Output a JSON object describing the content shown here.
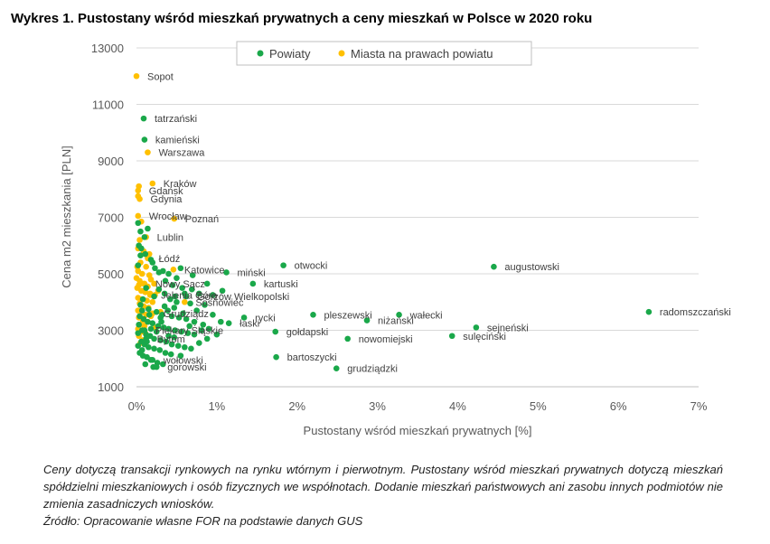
{
  "title": "Wykres 1. Pustostany wśród mieszkań prywatnych a ceny mieszkań w Polsce w 2020 roku",
  "caption": {
    "line1": "Ceny dotyczą transakcji rynkowych na rynku wtórnym i pierwotnym. Pustostany wśród mieszkań prywatnych dotyczą mieszkań spółdzielni mieszkaniowych i osób fizycznych we współnotach. Dodanie mieszkań państwowych ani zasobu innych podmiotów nie zmienia zasadniczych wniosków.",
    "line2": "Źródło: Opracowanie własne FOR na podstawie danych GUS"
  },
  "chart_data": {
    "type": "scatter",
    "xlabel": "Pustostany wśród mieszkań prywatnych [%]",
    "ylabel": "Cena m2 mieszkania [PLN]",
    "xlim": [
      0,
      7
    ],
    "ylim": [
      1000,
      13000
    ],
    "x_ticks": [
      0,
      1,
      2,
      3,
      4,
      5,
      6,
      7
    ],
    "x_tick_labels": [
      "0%",
      "1%",
      "2%",
      "3%",
      "4%",
      "5%",
      "6%",
      "7%"
    ],
    "y_ticks": [
      1000,
      3000,
      5000,
      7000,
      9000,
      11000,
      13000
    ],
    "y_tick_labels": [
      "1000",
      "3000",
      "5000",
      "7000",
      "9000",
      "11000",
      "13000"
    ],
    "grid": "horizontal",
    "legend_position": "top-center",
    "colors": {
      "powiaty": "#1aa84a",
      "miasta": "#ffc000"
    },
    "series": [
      {
        "name": "Powiaty",
        "color": "#1aa84a",
        "labeled_points": [
          {
            "label": "tatrzański",
            "x": 0.09,
            "y": 10500
          },
          {
            "label": "kamieński",
            "x": 0.1,
            "y": 9750
          },
          {
            "label": "augustowski",
            "x": 4.45,
            "y": 5250
          },
          {
            "label": "radomszczański",
            "x": 6.38,
            "y": 3650
          },
          {
            "label": "otwocki",
            "x": 1.83,
            "y": 5300
          },
          {
            "label": "miński",
            "x": 1.12,
            "y": 5050
          },
          {
            "label": "kartuski",
            "x": 1.45,
            "y": 4650
          },
          {
            "label": "Gorzów Wielkopolski",
            "x": 0.62,
            "y": 4200
          },
          {
            "label": "łaski",
            "x": 1.15,
            "y": 3250
          },
          {
            "label": "rycki",
            "x": 1.34,
            "y": 3450
          },
          {
            "label": "pleszewski",
            "x": 2.2,
            "y": 3550
          },
          {
            "label": "niżański",
            "x": 2.87,
            "y": 3350
          },
          {
            "label": "wałecki",
            "x": 3.27,
            "y": 3550
          },
          {
            "label": "sejneński",
            "x": 4.23,
            "y": 3100
          },
          {
            "label": "sulęciński",
            "x": 3.93,
            "y": 2800
          },
          {
            "label": "nowomiejski",
            "x": 2.63,
            "y": 2700
          },
          {
            "label": "gołdapski",
            "x": 1.73,
            "y": 2950
          },
          {
            "label": "bartoszycki",
            "x": 1.74,
            "y": 2050
          },
          {
            "label": "grudziądzki",
            "x": 2.49,
            "y": 1650
          },
          {
            "label": "Piekary Śląskie",
            "x": 0.1,
            "y": 3000
          },
          {
            "label": "Bytom",
            "x": 0.12,
            "y": 2700
          },
          {
            "label": "wołowski",
            "x": 0.2,
            "y": 1950
          },
          {
            "label": "gorowski",
            "x": 0.25,
            "y": 1700
          }
        ],
        "points": [
          [
            0.02,
            6800
          ],
          [
            0.05,
            6500
          ],
          [
            0.1,
            6300
          ],
          [
            0.14,
            6600
          ],
          [
            0.03,
            6000
          ],
          [
            0.06,
            5900
          ],
          [
            0.05,
            5650
          ],
          [
            0.11,
            5700
          ],
          [
            0.18,
            5500
          ],
          [
            0.2,
            5400
          ],
          [
            0.23,
            5200
          ],
          [
            0.02,
            5300
          ],
          [
            0.28,
            5050
          ],
          [
            0.33,
            5100
          ],
          [
            0.4,
            5000
          ],
          [
            0.5,
            4850
          ],
          [
            0.36,
            4750
          ],
          [
            0.45,
            4600
          ],
          [
            0.57,
            4500
          ],
          [
            0.69,
            4450
          ],
          [
            0.6,
            4300
          ],
          [
            0.78,
            4300
          ],
          [
            0.95,
            4250
          ],
          [
            0.42,
            4100
          ],
          [
            0.5,
            4000
          ],
          [
            0.67,
            3950
          ],
          [
            0.35,
            3850
          ],
          [
            0.47,
            3800
          ],
          [
            0.85,
            3900
          ],
          [
            0.05,
            3900
          ],
          [
            0.15,
            3750
          ],
          [
            0.25,
            3650
          ],
          [
            0.32,
            3550
          ],
          [
            0.44,
            3500
          ],
          [
            0.53,
            3450
          ],
          [
            0.62,
            3400
          ],
          [
            0.72,
            3300
          ],
          [
            0.83,
            3200
          ],
          [
            0.04,
            3500
          ],
          [
            0.09,
            3400
          ],
          [
            0.14,
            3300
          ],
          [
            0.2,
            3250
          ],
          [
            0.27,
            3150
          ],
          [
            0.34,
            3100
          ],
          [
            0.4,
            3050
          ],
          [
            0.48,
            3000
          ],
          [
            0.56,
            2950
          ],
          [
            0.64,
            2900
          ],
          [
            0.72,
            2850
          ],
          [
            0.81,
            3000
          ],
          [
            0.88,
            2700
          ],
          [
            0.03,
            3200
          ],
          [
            0.07,
            3000
          ],
          [
            0.12,
            2850
          ],
          [
            0.17,
            2800
          ],
          [
            0.22,
            2700
          ],
          [
            0.3,
            2650
          ],
          [
            0.37,
            2600
          ],
          [
            0.44,
            2500
          ],
          [
            0.52,
            2450
          ],
          [
            0.6,
            2400
          ],
          [
            0.68,
            2350
          ],
          [
            0.02,
            2900
          ],
          [
            0.06,
            2600
          ],
          [
            0.1,
            2500
          ],
          [
            0.15,
            2400
          ],
          [
            0.22,
            2350
          ],
          [
            0.29,
            2300
          ],
          [
            0.36,
            2200
          ],
          [
            0.43,
            2150
          ],
          [
            0.02,
            2450
          ],
          [
            0.04,
            2200
          ],
          [
            0.08,
            2100
          ],
          [
            0.13,
            2050
          ],
          [
            0.18,
            1950
          ],
          [
            0.26,
            1850
          ],
          [
            0.33,
            1800
          ],
          [
            0.11,
            1800
          ],
          [
            0.21,
            1700
          ],
          [
            0.07,
            2300
          ],
          [
            0.25,
            2950
          ],
          [
            0.18,
            3050
          ],
          [
            0.31,
            3300
          ],
          [
            0.39,
            3700
          ],
          [
            0.58,
            3600
          ],
          [
            0.75,
            3700
          ],
          [
            0.95,
            3550
          ],
          [
            1.05,
            3300
          ],
          [
            0.9,
            3050
          ],
          [
            0.47,
            2750
          ],
          [
            0.55,
            2100
          ],
          [
            0.35,
            4300
          ],
          [
            0.28,
            4450
          ],
          [
            0.22,
            4200
          ],
          [
            0.48,
            4200
          ],
          [
            1.07,
            4400
          ],
          [
            0.88,
            4650
          ],
          [
            0.7,
            4950
          ],
          [
            0.55,
            5200
          ],
          [
            0.12,
            4500
          ],
          [
            0.08,
            4100
          ],
          [
            0.3,
            3450
          ],
          [
            0.16,
            3550
          ],
          [
            0.07,
            3700
          ],
          [
            0.13,
            2600
          ],
          [
            0.4,
            2800
          ],
          [
            0.66,
            3150
          ],
          [
            0.78,
            2550
          ],
          [
            1.0,
            2850
          ]
        ]
      },
      {
        "name": "Miasta na prawach powiatu",
        "color": "#ffc000",
        "labeled_points": [
          {
            "label": "Sopot",
            "x": 0.0,
            "y": 12000
          },
          {
            "label": "Warszawa",
            "x": 0.14,
            "y": 9300
          },
          {
            "label": "Kraków",
            "x": 0.2,
            "y": 8200
          },
          {
            "label": "Gdańsk",
            "x": 0.02,
            "y": 7950
          },
          {
            "label": "Gdynia",
            "x": 0.04,
            "y": 7650
          },
          {
            "label": "Wrocław",
            "x": 0.02,
            "y": 7050
          },
          {
            "label": "Poznań",
            "x": 0.47,
            "y": 6950
          },
          {
            "label": "Lublin",
            "x": 0.12,
            "y": 6300
          },
          {
            "label": "Łódź",
            "x": 0.14,
            "y": 5550
          },
          {
            "label": "Katowice",
            "x": 0.46,
            "y": 5150
          },
          {
            "label": "Nowy Sącz",
            "x": 0.1,
            "y": 4650
          },
          {
            "label": "Jelenia Góra",
            "x": 0.17,
            "y": 4250
          },
          {
            "label": "Sosnowiec",
            "x": 0.6,
            "y": 4000
          },
          {
            "label": "Grudziądz",
            "x": 0.2,
            "y": 3600
          }
        ],
        "points": [
          [
            0.03,
            8100
          ],
          [
            0.02,
            7750
          ],
          [
            0.06,
            6850
          ],
          [
            0.04,
            6200
          ],
          [
            0.02,
            5900
          ],
          [
            0.09,
            5800
          ],
          [
            0.16,
            5700
          ],
          [
            0.05,
            5400
          ],
          [
            0.12,
            5250
          ],
          [
            0.02,
            5100
          ],
          [
            0.07,
            5000
          ],
          [
            0.0,
            4850
          ],
          [
            0.04,
            4750
          ],
          [
            0.09,
            4650
          ],
          [
            0.14,
            4550
          ],
          [
            0.01,
            4500
          ],
          [
            0.06,
            4400
          ],
          [
            0.11,
            4350
          ],
          [
            0.17,
            4300
          ],
          [
            0.23,
            4250
          ],
          [
            0.02,
            4150
          ],
          [
            0.07,
            4100
          ],
          [
            0.13,
            4050
          ],
          [
            0.2,
            4000
          ],
          [
            0.04,
            3950
          ],
          [
            0.09,
            3850
          ],
          [
            0.15,
            3800
          ],
          [
            0.02,
            3700
          ],
          [
            0.07,
            3650
          ],
          [
            0.12,
            3550
          ],
          [
            0.18,
            3500
          ],
          [
            0.03,
            3450
          ],
          [
            0.08,
            3350
          ],
          [
            0.14,
            3300
          ],
          [
            0.04,
            3200
          ],
          [
            0.1,
            3150
          ],
          [
            0.02,
            3050
          ],
          [
            0.06,
            2950
          ],
          [
            0.11,
            2900
          ],
          [
            0.03,
            2800
          ],
          [
            0.08,
            2650
          ],
          [
            0.05,
            2550
          ],
          [
            0.24,
            3100
          ],
          [
            0.3,
            3650
          ],
          [
            0.22,
            4650
          ],
          [
            0.27,
            4400
          ],
          [
            0.18,
            4800
          ],
          [
            0.01,
            5250
          ],
          [
            0.03,
            4600
          ],
          [
            0.16,
            4950
          ]
        ]
      }
    ]
  }
}
